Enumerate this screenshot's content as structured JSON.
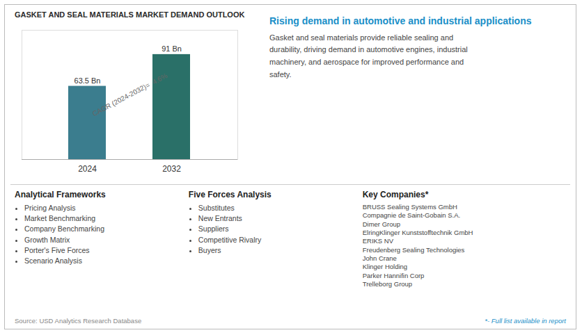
{
  "chart_data": {
    "type": "bar",
    "title": "GASKET AND SEAL MATERIALS MARKET DEMAND OUTLOOK",
    "subtitle": "Rising demand in automotive and industrial applications",
    "categories": [
      "2024",
      "2032"
    ],
    "values": [
      63.5,
      91
    ],
    "value_labels": [
      "63.5 Bn",
      "91 Bn"
    ],
    "data_labels": true,
    "colors": [
      "#3b7d8e",
      "#2a7068"
    ],
    "ylim": [
      0,
      112
    ],
    "tick_labels": "x",
    "annotations": [
      {
        "text": "CAGR (2024-2032)=  4.6%"
      },
      {
        "text": "Gasket and seal materials provide reliable sealing and\ndurability, driving demand in automotive engines, industrial\nmachinery, and aerospace for improved performance and\nsafety."
      },
      {
        "title": "Analytical Frameworks",
        "items": [
          "Pricing Analysis",
          "Market Benchmarking",
          "Company Benchmarking",
          "Growth Matrix",
          "Porter's Five Forces",
          "Scenario Analysis"
        ]
      },
      {
        "title": "Five Forces Analysis",
        "items": [
          "Substitutes",
          "New Entrants",
          "Suppliers",
          "Competitive Rivalry",
          "Buyers"
        ]
      },
      {
        "title": "Key Companies*",
        "items": [
          "BRUSS Sealing Systems GmbH",
          "Compagnie de Saint-Gobain S.A.",
          "Dimer Group",
          "ElringKlinger Kunststofftechnik GmbH",
          "ERIKS NV",
          "Freudenberg Sealing Technologies",
          "John Crane",
          "Klinger Holding",
          "Parker Hannifin Corp",
          "Trelleborg Group"
        ]
      },
      {
        "text": "Source: USD Analytics Research Database"
      },
      {
        "text": "*- Full list available in report"
      }
    ]
  }
}
